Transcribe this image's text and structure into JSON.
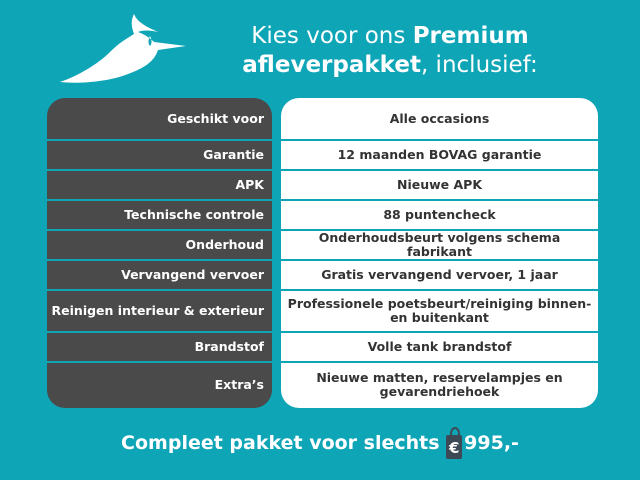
{
  "header": {
    "title_part1": "Kies voor ons ",
    "title_bold1": "Premium",
    "title_bold2": "afleverpakket",
    "title_part2": ", inclusief:"
  },
  "rows": [
    {
      "label": "Geschikt voor",
      "value": "Alle occasions"
    },
    {
      "label": "Garantie",
      "value": "12 maanden BOVAG garantie"
    },
    {
      "label": "APK",
      "value": "Nieuwe APK"
    },
    {
      "label": "Technische controle",
      "value": "88 puntencheck"
    },
    {
      "label": "Onderhoud",
      "value": "Onderhoudsbeurt volgens schema fabrikant"
    },
    {
      "label": "Vervangend vervoer",
      "value": "Gratis vervangend vervoer, 1 jaar"
    },
    {
      "label": "Reinigen interieur & exterieur",
      "value": "Professionele poetsbeurt/reiniging binnen- en buitenkant"
    },
    {
      "label": "Brandstof",
      "value": "Volle tank brandstof"
    },
    {
      "label": "Extra’s",
      "value": "Nieuwe matten, reservelampjes en gevarendriehoek"
    }
  ],
  "footer": {
    "text": "Compleet pakket voor slechts ",
    "currency": "€",
    "price": "995,-"
  },
  "colors": {
    "background": "#0ea5b7",
    "left_panel": "#4a4a4a",
    "right_panel": "#ffffff"
  },
  "icons": {
    "logo": "lapwing-bird-logo",
    "price_tag": "price-tag-icon"
  }
}
